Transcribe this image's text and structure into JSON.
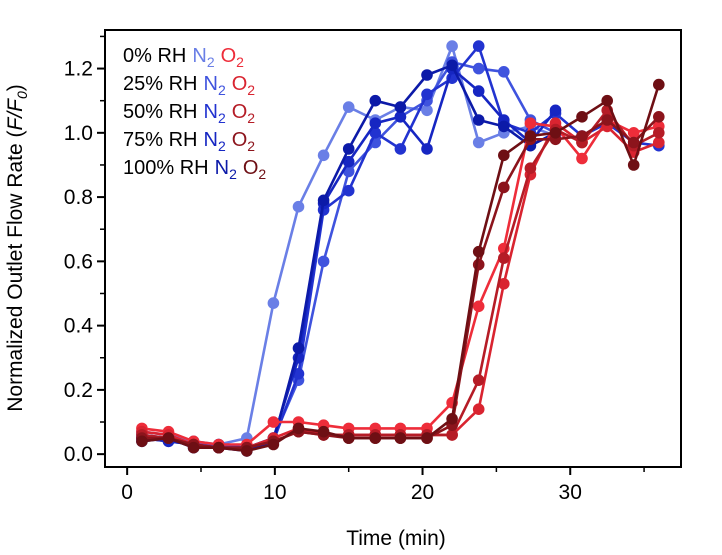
{
  "chart_data": {
    "type": "line",
    "title": "",
    "xlabel": "Time (min)",
    "ylabel_prefix": "Normalized Outlet Flow Rate (",
    "ylabel_var_num": "F",
    "ylabel_slash": "/",
    "ylabel_var_den": "F",
    "ylabel_sub": "0",
    "ylabel_suffix": ")",
    "xlim": [
      -1.5,
      37.5
    ],
    "ylim": [
      -0.04,
      1.32
    ],
    "xticks": [
      0,
      10,
      20,
      30
    ],
    "xtick_labels": [
      "0",
      "10",
      "20",
      "30"
    ],
    "yticks": [
      0.0,
      0.2,
      0.4,
      0.6,
      0.8,
      1.0,
      1.2
    ],
    "ytick_labels": [
      "0.0",
      "0.2",
      "0.4",
      "0.6",
      "0.8",
      "1.0",
      "1.2"
    ],
    "grid": false,
    "legend_position": "top-left",
    "legend": [
      {
        "rh": "0% RH",
        "n2": "N",
        "o2": "O",
        "sub": "2",
        "n2_color": "#6a7fe6",
        "o2_color": "#ee2d3a"
      },
      {
        "rh": "25% RH",
        "n2": "N",
        "o2": "O",
        "sub": "2",
        "n2_color": "#3f53de",
        "o2_color": "#d92430"
      },
      {
        "rh": "50% RH",
        "n2": "N",
        "o2": "O",
        "sub": "2",
        "n2_color": "#2233d0",
        "o2_color": "#b51c26"
      },
      {
        "rh": "75% RH",
        "n2": "N",
        "o2": "O",
        "sub": "2",
        "n2_color": "#1626c2",
        "o2_color": "#8c141c"
      },
      {
        "rh": "100% RH",
        "n2": "N",
        "o2": "O",
        "sub": "2",
        "n2_color": "#0c1aa8",
        "o2_color": "#6e0f14"
      }
    ],
    "series": [
      {
        "name": "0% RH N2",
        "color": "#6a7fe6",
        "x": [
          1,
          2.8,
          4.5,
          6.2,
          8.1,
          9.9,
          11.6,
          13.3,
          15.0,
          16.8,
          18.5,
          20.3,
          22.0,
          23.8,
          25.5,
          27.3,
          29.0
        ],
        "y": [
          0.07,
          0.06,
          0.04,
          0.03,
          0.05,
          0.47,
          0.77,
          0.93,
          1.08,
          1.04,
          1.08,
          1.07,
          1.27,
          0.97,
          1.0,
          1.02,
          0.99
        ]
      },
      {
        "name": "25% RH N2",
        "color": "#3f53de",
        "x": [
          1,
          2.8,
          4.5,
          6.2,
          8.1,
          9.9,
          11.6,
          13.3,
          15.0,
          16.8,
          18.5,
          20.3,
          22.0,
          23.8,
          25.5,
          27.3,
          29.0
        ],
        "y": [
          0.06,
          0.05,
          0.03,
          0.03,
          0.02,
          0.05,
          0.23,
          0.6,
          0.88,
          0.97,
          1.05,
          1.1,
          1.22,
          1.2,
          1.19,
          1.04,
          1.0
        ]
      },
      {
        "name": "50% RH N2",
        "color": "#2233d0",
        "x": [
          1,
          2.8,
          4.5,
          6.2,
          8.1,
          9.9,
          11.6,
          13.3,
          15.0,
          16.8,
          18.5,
          20.3,
          22.0,
          23.8,
          25.5,
          27.3,
          29.0,
          30.8,
          32.5,
          34.3,
          36.0
        ],
        "y": [
          0.05,
          0.04,
          0.03,
          0.02,
          0.02,
          0.04,
          0.25,
          0.76,
          0.82,
          1.0,
          0.95,
          1.12,
          1.17,
          1.27,
          1.03,
          1.0,
          1.06,
          0.99,
          1.03,
          0.97,
          0.96
        ]
      },
      {
        "name": "75% RH N2",
        "color": "#1626c2",
        "x": [
          1,
          2.8,
          4.5,
          6.2,
          8.1,
          9.9,
          11.6,
          13.3,
          15.0,
          16.8,
          18.5,
          20.3,
          22.0,
          23.8,
          25.5,
          27.3,
          29.0
        ],
        "y": [
          0.05,
          0.04,
          0.03,
          0.02,
          0.02,
          0.05,
          0.3,
          0.78,
          0.91,
          1.03,
          1.05,
          0.95,
          1.2,
          1.13,
          1.04,
          0.97,
          1.07
        ]
      },
      {
        "name": "100% RH N2",
        "color": "#0c1aa8",
        "x": [
          1,
          2.8,
          4.5,
          6.2,
          8.1,
          9.9,
          11.6,
          13.3,
          15.0,
          16.8,
          18.5,
          20.3,
          22.0,
          23.8,
          25.5,
          27.3,
          29.0
        ],
        "y": [
          0.04,
          0.05,
          0.02,
          0.02,
          0.01,
          0.04,
          0.33,
          0.79,
          0.95,
          1.1,
          1.08,
          1.18,
          1.21,
          1.04,
          1.02,
          0.96,
          1.0
        ]
      },
      {
        "name": "0% RH O2",
        "color": "#ee2d3a",
        "x": [
          1,
          2.8,
          4.5,
          6.2,
          8.1,
          9.9,
          11.6,
          13.3,
          15.0,
          16.8,
          18.5,
          20.3,
          22.0,
          23.8,
          25.5,
          27.3,
          29.0,
          30.8,
          32.5,
          34.3,
          36.0
        ],
        "y": [
          0.08,
          0.07,
          0.04,
          0.03,
          0.03,
          0.1,
          0.1,
          0.09,
          0.08,
          0.08,
          0.08,
          0.08,
          0.16,
          0.46,
          0.64,
          1.03,
          1.02,
          0.92,
          1.04,
          1.0,
          1.02
        ]
      },
      {
        "name": "25% RH O2",
        "color": "#d92430",
        "x": [
          1,
          2.8,
          4.5,
          6.2,
          8.1,
          9.9,
          11.6,
          13.3,
          15.0,
          16.8,
          18.5,
          20.3,
          22.0,
          23.8,
          25.5,
          27.3,
          29.0,
          30.8,
          32.5,
          34.3,
          36.0
        ],
        "y": [
          0.07,
          0.06,
          0.03,
          0.02,
          0.02,
          0.05,
          0.08,
          0.06,
          0.06,
          0.06,
          0.06,
          0.06,
          0.06,
          0.14,
          0.53,
          0.87,
          1.03,
          0.97,
          1.02,
          0.94,
          0.97
        ]
      },
      {
        "name": "50% RH O2",
        "color": "#b51c26",
        "x": [
          1,
          2.8,
          4.5,
          6.2,
          8.1,
          9.9,
          11.6,
          13.3,
          15.0,
          16.8,
          18.5,
          20.3,
          22.0,
          23.8,
          25.5,
          27.3,
          29.0,
          30.8,
          32.5,
          34.3,
          36.0
        ],
        "y": [
          0.06,
          0.05,
          0.03,
          0.02,
          0.02,
          0.04,
          0.07,
          0.06,
          0.06,
          0.06,
          0.06,
          0.06,
          0.06,
          0.23,
          0.61,
          0.89,
          1.01,
          0.97,
          1.07,
          0.96,
          1.0
        ]
      },
      {
        "name": "75% RH O2",
        "color": "#8c141c",
        "x": [
          1,
          2.8,
          4.5,
          6.2,
          8.1,
          9.9,
          11.6,
          13.3,
          15.0,
          16.8,
          18.5,
          20.3,
          22.0,
          23.8,
          25.5,
          27.3,
          29.0,
          30.8,
          32.5,
          34.3,
          36.0
        ],
        "y": [
          0.05,
          0.05,
          0.03,
          0.02,
          0.02,
          0.04,
          0.07,
          0.06,
          0.05,
          0.05,
          0.05,
          0.05,
          0.09,
          0.59,
          0.83,
          0.98,
          0.98,
          0.99,
          1.04,
          0.97,
          1.05
        ]
      },
      {
        "name": "100% RH O2",
        "color": "#6e0f14",
        "x": [
          1,
          2.8,
          4.5,
          6.2,
          8.1,
          9.9,
          11.6,
          13.3,
          15.0,
          16.8,
          18.5,
          20.3,
          22.0,
          23.8,
          25.5,
          27.3,
          29.0,
          30.8,
          32.5,
          34.3,
          36.0
        ],
        "y": [
          0.04,
          0.05,
          0.02,
          0.02,
          0.01,
          0.03,
          0.08,
          0.07,
          0.05,
          0.05,
          0.05,
          0.05,
          0.11,
          0.63,
          0.93,
          0.99,
          1.0,
          1.05,
          1.1,
          0.9,
          1.15
        ]
      }
    ]
  }
}
